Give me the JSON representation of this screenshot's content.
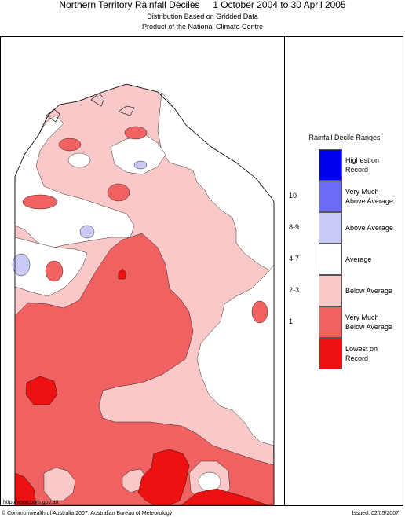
{
  "header": {
    "title": "Northern Territory Rainfall Deciles     1 October 2004 to 30 April 2005",
    "subtitle_1": "Distribution Based on Gridded Data",
    "subtitle_2": "Product of the National Climate Centre"
  },
  "legend": {
    "title": "Rainfall Decile Ranges",
    "items": [
      {
        "decile": "",
        "label_1": "Highest on",
        "label_2": "Record",
        "color": "#0000ee"
      },
      {
        "decile": "10",
        "label_1": "Very Much",
        "label_2": "Above Average",
        "color": "#6b6bf5"
      },
      {
        "decile": "8-9",
        "label_1": "Above Average",
        "label_2": "",
        "color": "#c9c9f6"
      },
      {
        "decile": "4-7",
        "label_1": "Average",
        "label_2": "",
        "color": "#ffffff"
      },
      {
        "decile": "2-3",
        "label_1": "Below Average",
        "label_2": "",
        "color": "#f9c8c8"
      },
      {
        "decile": "1",
        "label_1": "Very Much",
        "label_2": "Below Average",
        "color": "#f06262"
      },
      {
        "decile": "",
        "label_1": "Lowest on",
        "label_2": "Record",
        "color": "#ee1111"
      }
    ]
  },
  "map_colors": {
    "average": "#ffffff",
    "below_average": "#f9c8c8",
    "very_much_below": "#f06262",
    "lowest": "#ee1111",
    "above_average": "#c9c9f6",
    "coast": "#000000"
  },
  "footer": {
    "url": "http://www.bom.gov.au",
    "copyright": "© Commonwealth of Australia 2007, Australian Bureau of Meteorology",
    "issued": "Issued: 02/05/2007"
  }
}
